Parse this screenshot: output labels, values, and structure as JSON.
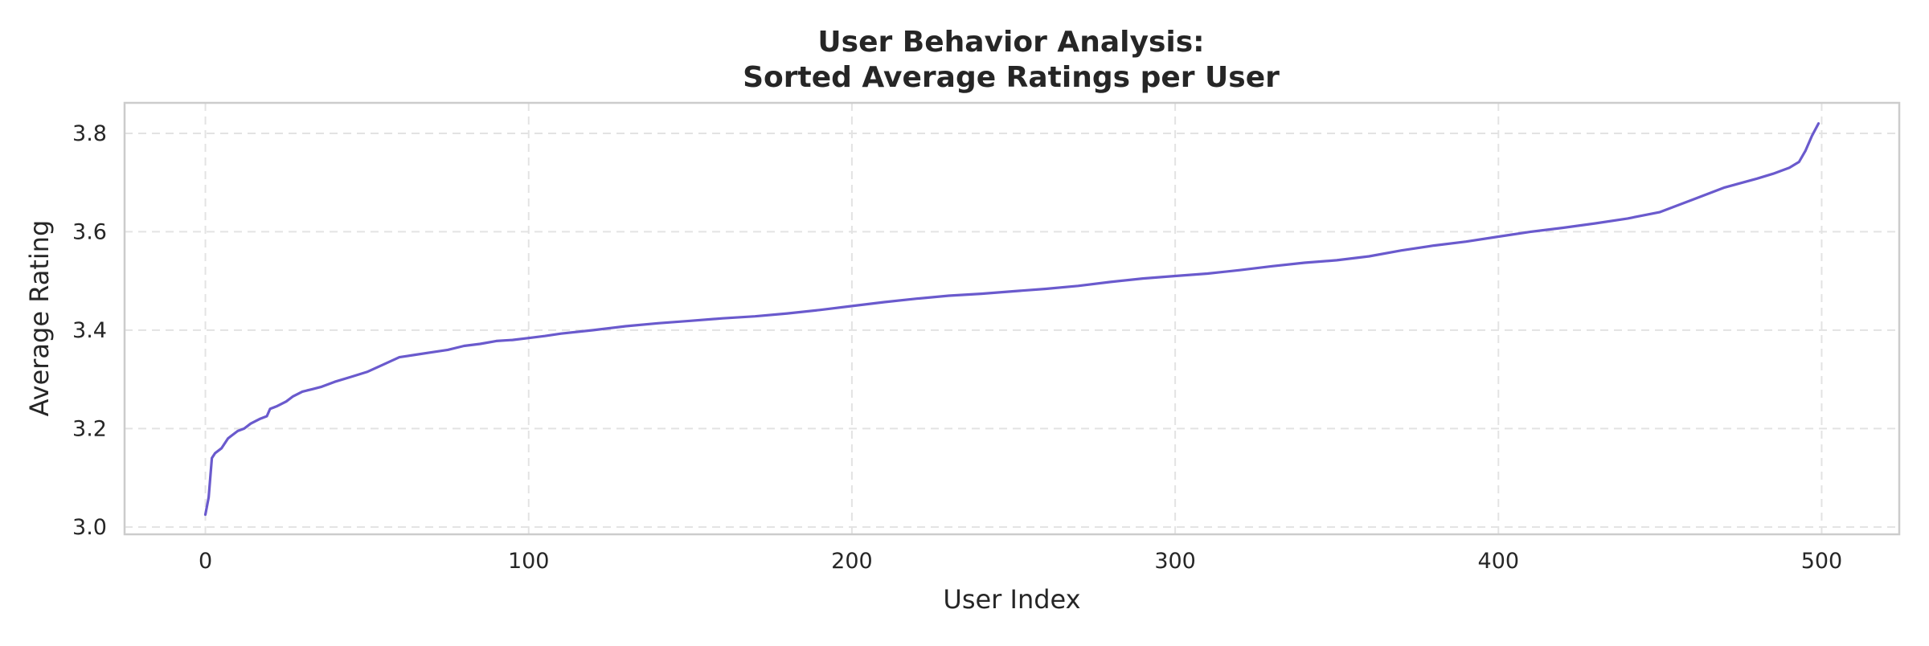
{
  "colors": {
    "series": "#6a5acd",
    "grid": "#e3e3e3",
    "frame": "#cccccc",
    "text": "#262626"
  },
  "chart_data": {
    "type": "line",
    "title_lines": [
      "User Behavior Analysis:",
      "Sorted Average Ratings per User"
    ],
    "xlabel": "User Index",
    "ylabel": "Average Rating",
    "xlim": [
      -25,
      524
    ],
    "ylim": [
      2.985,
      3.862
    ],
    "xticks": [
      0,
      100,
      200,
      300,
      400,
      500
    ],
    "xtick_labels": [
      "0",
      "100",
      "200",
      "300",
      "400",
      "500"
    ],
    "yticks": [
      3.0,
      3.2,
      3.4,
      3.6,
      3.8
    ],
    "ytick_labels": [
      "3.0",
      "3.2",
      "3.4",
      "3.6",
      "3.8"
    ],
    "grid": true,
    "legend": "none",
    "series": [
      {
        "x": [
          0,
          1,
          2,
          3,
          5,
          7,
          8,
          10,
          12,
          14,
          17,
          19,
          20,
          22,
          25,
          27,
          30,
          33,
          36,
          40,
          45,
          50,
          55,
          60,
          65,
          70,
          75,
          80,
          85,
          90,
          95,
          100,
          105,
          110,
          120,
          130,
          140,
          150,
          160,
          170,
          180,
          190,
          200,
          210,
          220,
          230,
          240,
          250,
          260,
          270,
          280,
          290,
          300,
          310,
          320,
          330,
          340,
          350,
          360,
          370,
          380,
          390,
          400,
          410,
          420,
          430,
          440,
          450,
          460,
          470,
          480,
          485,
          490,
          493,
          495,
          497,
          499
        ],
        "y": [
          3.025,
          3.06,
          3.14,
          3.15,
          3.16,
          3.18,
          3.185,
          3.195,
          3.2,
          3.21,
          3.22,
          3.225,
          3.24,
          3.245,
          3.255,
          3.265,
          3.275,
          3.28,
          3.285,
          3.295,
          3.305,
          3.315,
          3.33,
          3.345,
          3.35,
          3.355,
          3.36,
          3.368,
          3.372,
          3.378,
          3.38,
          3.384,
          3.388,
          3.393,
          3.4,
          3.408,
          3.414,
          3.419,
          3.424,
          3.428,
          3.434,
          3.441,
          3.449,
          3.457,
          3.464,
          3.47,
          3.474,
          3.479,
          3.484,
          3.49,
          3.498,
          3.505,
          3.51,
          3.515,
          3.522,
          3.53,
          3.537,
          3.542,
          3.55,
          3.562,
          3.572,
          3.58,
          3.59,
          3.6,
          3.608,
          3.617,
          3.627,
          3.64,
          3.665,
          3.69,
          3.708,
          3.718,
          3.73,
          3.742,
          3.765,
          3.795,
          3.82
        ]
      }
    ]
  }
}
